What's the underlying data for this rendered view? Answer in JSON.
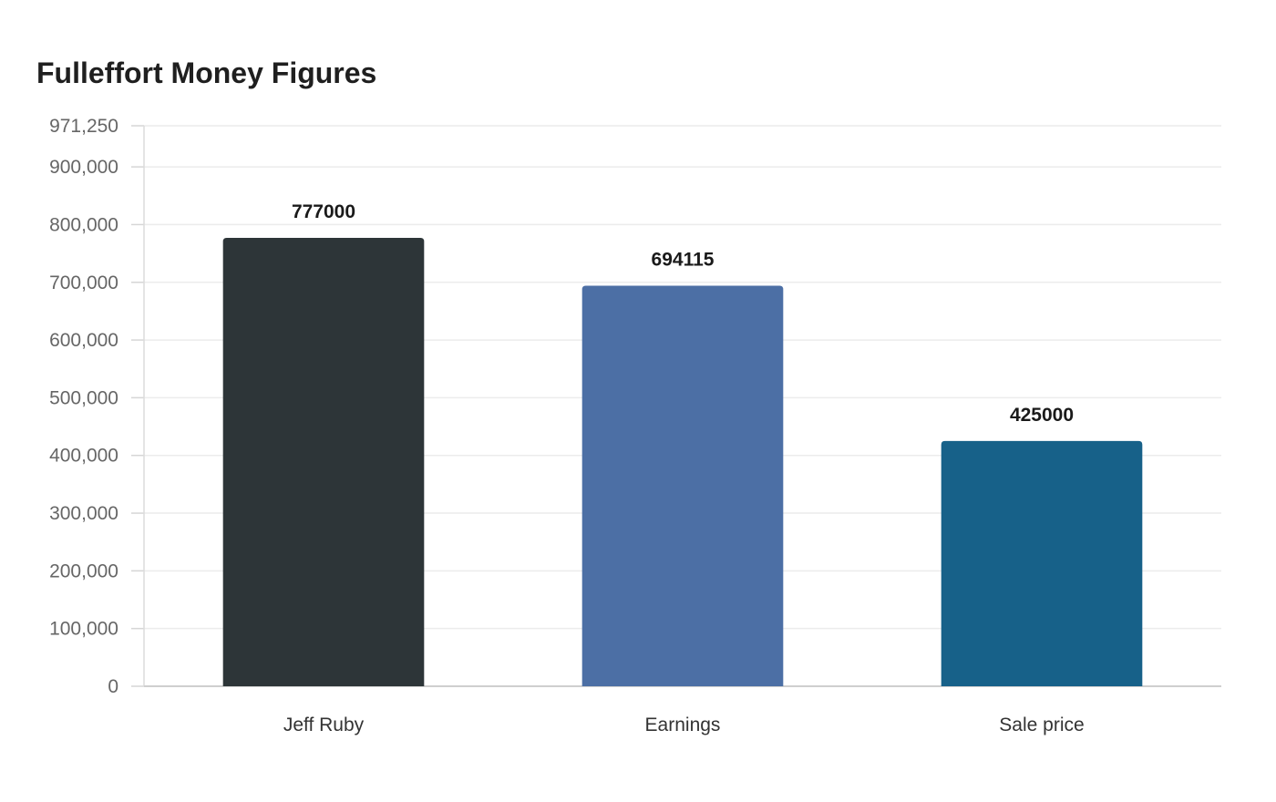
{
  "chart_data": {
    "type": "bar",
    "title": "Fulleffort Money Figures",
    "xlabel": "",
    "ylabel": "",
    "categories": [
      "Jeff Ruby",
      "Earnings",
      "Sale price"
    ],
    "values": [
      777000,
      694115,
      425000
    ],
    "data_labels": [
      "777000",
      "694115",
      "425000"
    ],
    "bar_colors": [
      "#2d3538",
      "#4c6fa5",
      "#176189"
    ],
    "ylim": [
      0,
      971250
    ],
    "y_ticks": [
      0,
      100000,
      200000,
      300000,
      400000,
      500000,
      600000,
      700000,
      800000,
      900000,
      971250
    ],
    "y_tick_labels": [
      "0",
      "100,000",
      "200,000",
      "300,000",
      "400,000",
      "500,000",
      "600,000",
      "700,000",
      "800,000",
      "900,000",
      "971,250"
    ],
    "grid": true,
    "legend": "none"
  }
}
